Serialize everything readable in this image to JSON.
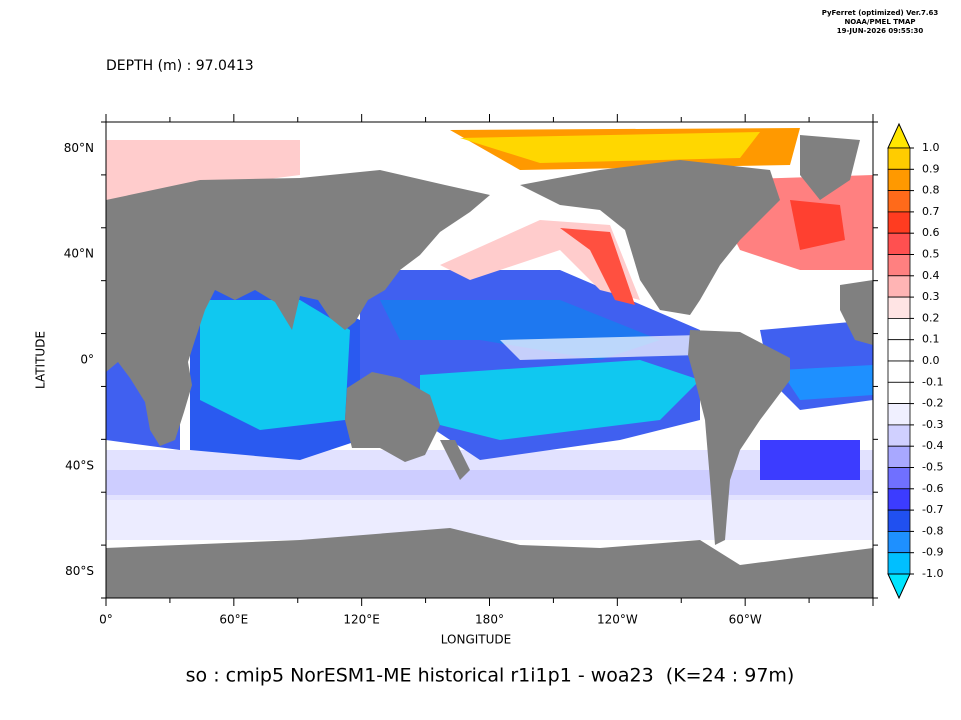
{
  "header": {
    "line1": "PyFerret (optimized) Ver.7.63",
    "line2": "NOAA/PMEL TMAP",
    "line3": "19-JUN-2026 09:55:30"
  },
  "subtitle": "DEPTH (m) : 97.0413",
  "title": "so : cmip5 NorESM1-ME historical r1i1p1 - woa23  (K=24 : 97m)",
  "x_axis": {
    "label": "LONGITUDE",
    "ticks": [
      "0°",
      "60°E",
      "120°E",
      "180°",
      "120°W",
      "60°W"
    ]
  },
  "y_axis": {
    "label": "LATITUDE",
    "ticks": [
      "80°N",
      "40°N",
      "0°",
      "40°S",
      "80°S"
    ]
  },
  "colorbar": {
    "labels": [
      "1.0",
      "0.9",
      "0.8",
      "0.7",
      "0.6",
      "0.5",
      "0.4",
      "0.3",
      "0.2",
      "0.1",
      "0.0",
      "-0.1",
      "-0.2",
      "-0.3",
      "-0.4",
      "-0.5",
      "-0.6",
      "-0.7",
      "-0.8",
      "-0.9",
      "-1.0"
    ],
    "colors": [
      "#ffe600",
      "#ffcc00",
      "#ff9900",
      "#ff6a1a",
      "#ff3c20",
      "#ff5050",
      "#ff8080",
      "#ffb4b4",
      "#ffe4e4",
      "#ffffff",
      "#ffffff",
      "#ffffff",
      "#ffffff",
      "#f0f0ff",
      "#d0d0ff",
      "#a8a8ff",
      "#7070ff",
      "#3c3cff",
      "#2050f0",
      "#1e90ff",
      "#00bfff",
      "#00e5ff"
    ]
  }
}
